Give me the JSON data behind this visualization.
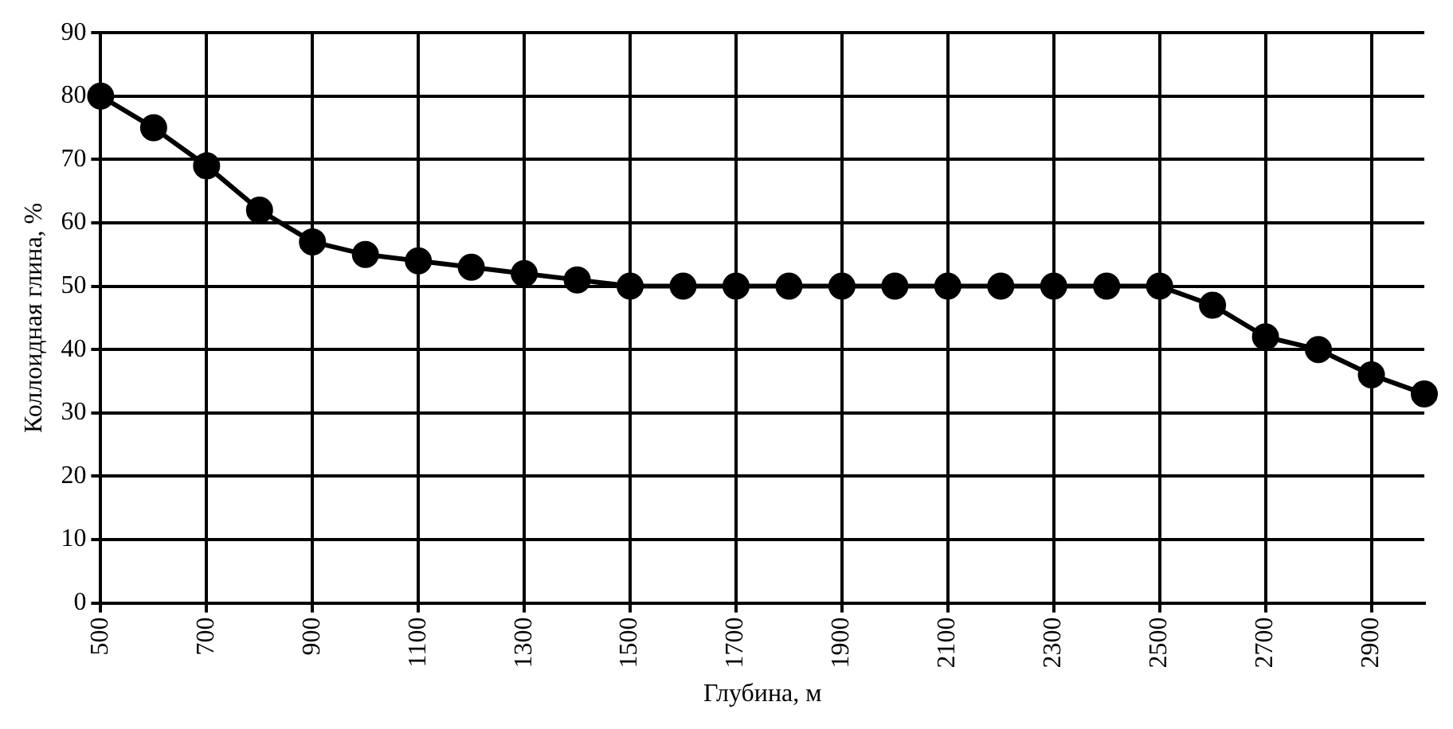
{
  "chart_data": {
    "type": "line",
    "xlabel": "Глубина, м",
    "ylabel": "Коллоидная глина, %",
    "x": [
      500,
      600,
      700,
      800,
      900,
      1000,
      1100,
      1200,
      1300,
      1400,
      1500,
      1600,
      1700,
      1800,
      1900,
      2000,
      2100,
      2200,
      2300,
      2400,
      2500,
      2600,
      2700,
      2800,
      2900,
      3000
    ],
    "series": [
      {
        "color": "#000000",
        "values": [
          80,
          75,
          69,
          62,
          57,
          55,
          54,
          53,
          52,
          51,
          50,
          50,
          50,
          50,
          50,
          50,
          50,
          50,
          50,
          50,
          50,
          47,
          42,
          40,
          36,
          33
        ]
      }
    ],
    "xlim": [
      500,
      3000
    ],
    "xticks": [
      500,
      700,
      900,
      1100,
      1300,
      1500,
      1700,
      1900,
      2100,
      2300,
      2500,
      2700,
      2900
    ],
    "ylim": [
      0,
      90
    ],
    "yticks": [
      0,
      10,
      20,
      30,
      40,
      50,
      60,
      70,
      80,
      90
    ],
    "grid": true,
    "legend": false,
    "marker": "circle",
    "line_style": "solid"
  }
}
